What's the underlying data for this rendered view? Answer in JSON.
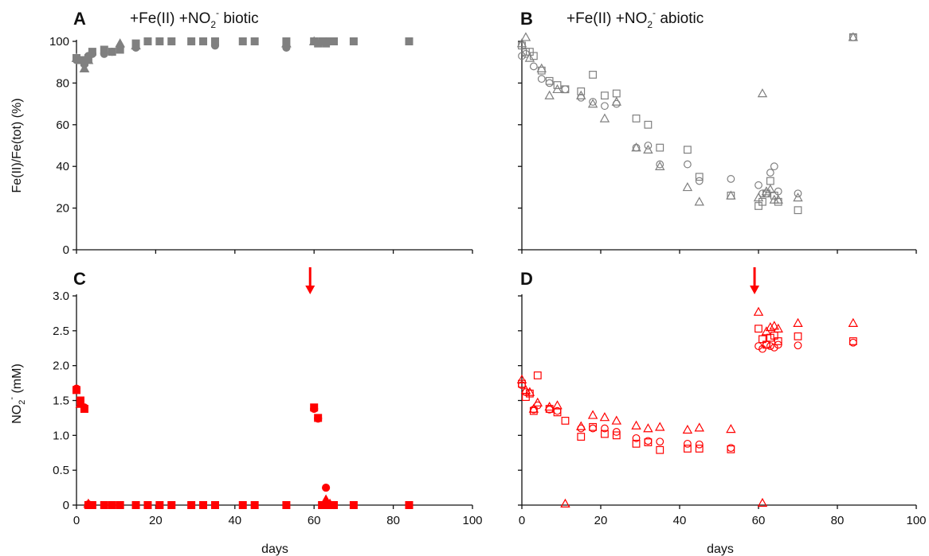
{
  "figure": {
    "xlabel": "days",
    "ylabel_top": "Fe(II)/Fe(tot) (%)",
    "ylabel_bottom_base": "NO",
    "ylabel_bottom_sub": "2",
    "ylabel_bottom_sup": "-",
    "ylabel_bottom_unit": " (mM)"
  },
  "panels": [
    {
      "letter": "A",
      "title_base": "+Fe(II) +NO",
      "title_sub": "2",
      "title_sup": "-",
      "title_rest": " biotic"
    },
    {
      "letter": "B",
      "title_base": "+Fe(II) +NO",
      "title_sub": "2",
      "title_sup": "-",
      "title_rest": " abiotic"
    },
    {
      "letter": "C"
    },
    {
      "letter": "D"
    }
  ],
  "chart_data": [
    {
      "panel": "A",
      "type": "scatter",
      "xlim": [
        0,
        100
      ],
      "ylim": [
        0,
        100
      ],
      "xticks": [
        0,
        20,
        40,
        60,
        80,
        100
      ],
      "yticks": [
        0,
        20,
        40,
        60,
        80,
        100
      ],
      "xtick_labels_shown": false,
      "ytick_labels_shown": true,
      "marker_fill": "filled",
      "color": "#808080",
      "series": [
        {
          "marker": "square",
          "points": [
            [
              0,
              92
            ],
            [
              1,
              91
            ],
            [
              2,
              90
            ],
            [
              3,
              92
            ],
            [
              4,
              95
            ],
            [
              7,
              96
            ],
            [
              9,
              95
            ],
            [
              11,
              96
            ],
            [
              15,
              99
            ],
            [
              18,
              100
            ],
            [
              21,
              100
            ],
            [
              24,
              100
            ],
            [
              29,
              100
            ],
            [
              32,
              100
            ],
            [
              35,
              100
            ],
            [
              42,
              100
            ],
            [
              45,
              100
            ],
            [
              53,
              100
            ],
            [
              60,
              100
            ],
            [
              61,
              99
            ],
            [
              62,
              100
            ],
            [
              63,
              99
            ],
            [
              64,
              100
            ],
            [
              65,
              100
            ],
            [
              70,
              100
            ],
            [
              84,
              100
            ]
          ]
        },
        {
          "marker": "circle",
          "points": [
            [
              0,
              91
            ],
            [
              2,
              89
            ],
            [
              3,
              93
            ],
            [
              4,
              94
            ],
            [
              7,
              94
            ],
            [
              9,
              95
            ],
            [
              11,
              97
            ],
            [
              15,
              97
            ],
            [
              35,
              98
            ],
            [
              53,
              97
            ],
            [
              63,
              100
            ]
          ]
        },
        {
          "marker": "triangle",
          "points": [
            [
              0,
              92
            ],
            [
              2,
              87
            ],
            [
              3,
              91
            ],
            [
              11,
              99
            ],
            [
              15,
              98
            ],
            [
              53,
              99
            ],
            [
              60,
              100
            ]
          ]
        }
      ]
    },
    {
      "panel": "B",
      "type": "scatter",
      "xlim": [
        0,
        100
      ],
      "ylim": [
        0,
        100
      ],
      "xticks": [
        0,
        20,
        40,
        60,
        80,
        100
      ],
      "yticks": [
        0,
        20,
        40,
        60,
        80,
        100
      ],
      "xtick_labels_shown": false,
      "ytick_labels_shown": false,
      "marker_fill": "hollow",
      "color": "#808080",
      "series": [
        {
          "marker": "square",
          "points": [
            [
              0,
              98
            ],
            [
              1,
              95
            ],
            [
              2,
              95
            ],
            [
              3,
              93
            ],
            [
              5,
              86
            ],
            [
              7,
              81
            ],
            [
              9,
              79
            ],
            [
              11,
              77
            ],
            [
              15,
              76
            ],
            [
              18,
              84
            ],
            [
              21,
              74
            ],
            [
              24,
              75
            ],
            [
              29,
              63
            ],
            [
              32,
              60
            ],
            [
              35,
              49
            ],
            [
              42,
              48
            ],
            [
              45,
              35
            ],
            [
              53,
              26
            ],
            [
              60,
              21
            ],
            [
              61,
              23
            ],
            [
              62,
              27
            ],
            [
              63,
              33
            ],
            [
              64,
              26
            ],
            [
              65,
              23
            ],
            [
              70,
              19
            ],
            [
              84,
              102
            ]
          ]
        },
        {
          "marker": "circle",
          "points": [
            [
              0,
              93
            ],
            [
              1,
              94
            ],
            [
              3,
              88
            ],
            [
              5,
              82
            ],
            [
              7,
              80
            ],
            [
              11,
              77
            ],
            [
              15,
              73
            ],
            [
              18,
              71
            ],
            [
              21,
              69
            ],
            [
              24,
              70
            ],
            [
              29,
              49
            ],
            [
              32,
              50
            ],
            [
              35,
              41
            ],
            [
              42,
              41
            ],
            [
              45,
              33
            ],
            [
              53,
              34
            ],
            [
              60,
              31
            ],
            [
              61,
              27
            ],
            [
              62,
              27
            ],
            [
              63,
              37
            ],
            [
              64,
              40
            ],
            [
              65,
              28
            ],
            [
              70,
              27
            ],
            [
              84,
              102
            ]
          ]
        },
        {
          "marker": "triangle",
          "points": [
            [
              0,
              99
            ],
            [
              1,
              102
            ],
            [
              2,
              92
            ],
            [
              5,
              87
            ],
            [
              7,
              74
            ],
            [
              9,
              77
            ],
            [
              15,
              74
            ],
            [
              18,
              70
            ],
            [
              21,
              63
            ],
            [
              24,
              71
            ],
            [
              29,
              49
            ],
            [
              32,
              48
            ],
            [
              35,
              40
            ],
            [
              42,
              30
            ],
            [
              45,
              23
            ],
            [
              53,
              26
            ],
            [
              60,
              25
            ],
            [
              61,
              75
            ],
            [
              62,
              28
            ],
            [
              63,
              29
            ],
            [
              64,
              24
            ],
            [
              65,
              24
            ],
            [
              70,
              25
            ],
            [
              84,
              102
            ]
          ]
        }
      ]
    },
    {
      "panel": "C",
      "type": "scatter",
      "xlim": [
        0,
        100
      ],
      "ylim": [
        0,
        3.0
      ],
      "xticks": [
        0,
        20,
        40,
        60,
        80,
        100
      ],
      "yticks": [
        0.0,
        0.5,
        1.0,
        1.5,
        2.0,
        2.5,
        3.0
      ],
      "xtick_labels": [
        "0",
        "20",
        "40",
        "60",
        "80",
        "100"
      ],
      "ytick_labels": [
        "0",
        "0.5",
        "1.0",
        "1.5",
        "2.0",
        "2.5",
        "3.0"
      ],
      "marker_fill": "filled",
      "color": "#ff0000",
      "arrow_day": 59,
      "series": [
        {
          "marker": "square",
          "points": [
            [
              0,
              1.65
            ],
            [
              1,
              1.5
            ],
            [
              2,
              1.38
            ],
            [
              3,
              0
            ],
            [
              4,
              0
            ],
            [
              7,
              0
            ],
            [
              9,
              0
            ],
            [
              11,
              0
            ],
            [
              15,
              0
            ],
            [
              18,
              0
            ],
            [
              21,
              0
            ],
            [
              24,
              0
            ],
            [
              29,
              0
            ],
            [
              32,
              0
            ],
            [
              35,
              0
            ],
            [
              42,
              0
            ],
            [
              45,
              0
            ],
            [
              53,
              0
            ],
            [
              60,
              1.4
            ],
            [
              61,
              1.25
            ],
            [
              62,
              0
            ],
            [
              63,
              0
            ],
            [
              64,
              0
            ],
            [
              65,
              0
            ],
            [
              70,
              0
            ],
            [
              84,
              0
            ]
          ]
        },
        {
          "marker": "circle",
          "points": [
            [
              0,
              1.67
            ],
            [
              2,
              1.4
            ],
            [
              3,
              0.01
            ],
            [
              60,
              1.38
            ],
            [
              61,
              1.24
            ],
            [
              63,
              0.25
            ],
            [
              65,
              0
            ]
          ]
        },
        {
          "marker": "triangle",
          "points": [
            [
              1,
              1.45
            ],
            [
              3,
              0.02
            ],
            [
              63,
              0.08
            ],
            [
              64,
              0.02
            ]
          ]
        }
      ]
    },
    {
      "panel": "D",
      "type": "scatter",
      "xlim": [
        0,
        100
      ],
      "ylim": [
        0,
        3.0
      ],
      "xticks": [
        0,
        20,
        40,
        60,
        80,
        100
      ],
      "yticks": [
        0.0,
        0.5,
        1.0,
        1.5,
        2.0,
        2.5,
        3.0
      ],
      "xtick_labels": [
        "0",
        "20",
        "40",
        "60",
        "80",
        "100"
      ],
      "ytick_labels_shown": false,
      "marker_fill": "hollow",
      "color": "#ff0000",
      "arrow_day": 59,
      "series": [
        {
          "marker": "square",
          "points": [
            [
              0,
              1.74
            ],
            [
              1,
              1.55
            ],
            [
              2,
              1.6
            ],
            [
              3,
              1.35
            ],
            [
              4,
              1.86
            ],
            [
              7,
              1.38
            ],
            [
              9,
              1.33
            ],
            [
              11,
              1.21
            ],
            [
              15,
              0.98
            ],
            [
              18,
              1.12
            ],
            [
              21,
              1.02
            ],
            [
              24,
              1.0
            ],
            [
              29,
              0.88
            ],
            [
              32,
              0.9
            ],
            [
              35,
              0.79
            ],
            [
              42,
              0.81
            ],
            [
              45,
              0.81
            ],
            [
              53,
              0.8
            ],
            [
              60,
              2.53
            ],
            [
              61,
              2.38
            ],
            [
              62,
              2.3
            ],
            [
              63,
              2.4
            ],
            [
              64,
              2.43
            ],
            [
              65,
              2.35
            ],
            [
              70,
              2.42
            ],
            [
              84,
              2.35
            ]
          ]
        },
        {
          "marker": "circle",
          "points": [
            [
              0,
              1.72
            ],
            [
              1,
              1.62
            ],
            [
              3,
              1.37
            ],
            [
              4,
              1.43
            ],
            [
              7,
              1.37
            ],
            [
              9,
              1.35
            ],
            [
              15,
              1.1
            ],
            [
              18,
              1.1
            ],
            [
              21,
              1.1
            ],
            [
              24,
              1.05
            ],
            [
              29,
              0.96
            ],
            [
              32,
              0.92
            ],
            [
              35,
              0.91
            ],
            [
              42,
              0.88
            ],
            [
              45,
              0.87
            ],
            [
              53,
              0.82
            ],
            [
              60,
              2.28
            ],
            [
              61,
              2.24
            ],
            [
              62,
              2.3
            ],
            [
              63,
              2.28
            ],
            [
              64,
              2.26
            ],
            [
              65,
              2.3
            ],
            [
              70,
              2.29
            ],
            [
              84,
              2.33
            ]
          ]
        },
        {
          "marker": "triangle",
          "points": [
            [
              0,
              1.8
            ],
            [
              1,
              1.65
            ],
            [
              2,
              1.62
            ],
            [
              3,
              1.38
            ],
            [
              4,
              1.47
            ],
            [
              7,
              1.41
            ],
            [
              9,
              1.43
            ],
            [
              11,
              0.02
            ],
            [
              15,
              1.13
            ],
            [
              18,
              1.29
            ],
            [
              21,
              1.26
            ],
            [
              24,
              1.21
            ],
            [
              29,
              1.14
            ],
            [
              32,
              1.1
            ],
            [
              35,
              1.12
            ],
            [
              42,
              1.08
            ],
            [
              45,
              1.11
            ],
            [
              53,
              1.09
            ],
            [
              60,
              2.77
            ],
            [
              61,
              0.03
            ],
            [
              62,
              2.49
            ],
            [
              63,
              2.55
            ],
            [
              64,
              2.57
            ],
            [
              65,
              2.53
            ],
            [
              70,
              2.61
            ],
            [
              84,
              2.61
            ]
          ]
        }
      ]
    }
  ]
}
